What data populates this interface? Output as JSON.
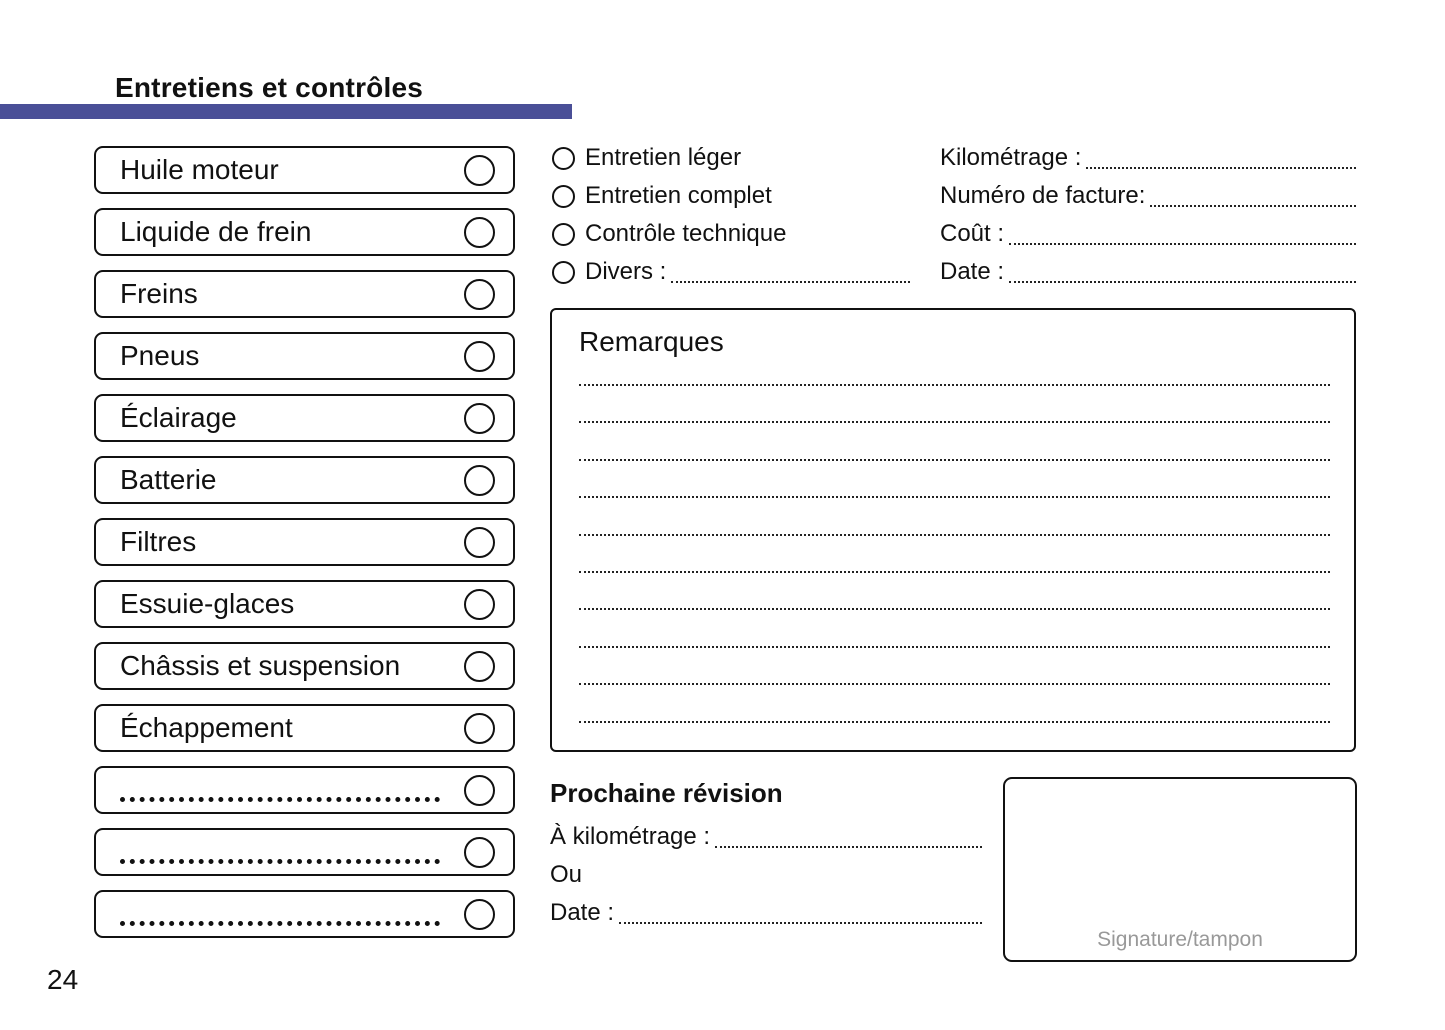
{
  "page": {
    "title": "Entretiens et contrôles",
    "number": "24",
    "accent_color": "#4a4f97"
  },
  "checklist": {
    "items": [
      {
        "label": "Huile moteur"
      },
      {
        "label": "Liquide de frein"
      },
      {
        "label": "Freins"
      },
      {
        "label": "Pneus"
      },
      {
        "label": "Éclairage"
      },
      {
        "label": "Batterie"
      },
      {
        "label": "Filtres"
      },
      {
        "label": "Essuie-glaces"
      },
      {
        "label": "Châssis et suspension"
      },
      {
        "label": "Échappement"
      },
      {
        "label": "",
        "blank": true
      },
      {
        "label": "",
        "blank": true
      },
      {
        "label": "",
        "blank": true
      }
    ]
  },
  "service_options": {
    "items": [
      {
        "label": "Entretien léger"
      },
      {
        "label": "Entretien complet"
      },
      {
        "label": "Contrôle technique"
      },
      {
        "label": "Divers :",
        "leader": true
      }
    ]
  },
  "invoice_fields": {
    "items": [
      {
        "label": "Kilométrage :"
      },
      {
        "label": "Numéro de facture:"
      },
      {
        "label": "Coût :"
      },
      {
        "label": "Date :"
      }
    ]
  },
  "remarks": {
    "title": "Remarques",
    "line_count": 10
  },
  "next_service": {
    "title": "Prochaine révision",
    "rows": [
      {
        "label": "À kilométrage :",
        "leader": true
      },
      {
        "label": "Ou"
      },
      {
        "label": "Date :",
        "leader": true
      }
    ]
  },
  "signature": {
    "label": "Signature/tampon"
  }
}
